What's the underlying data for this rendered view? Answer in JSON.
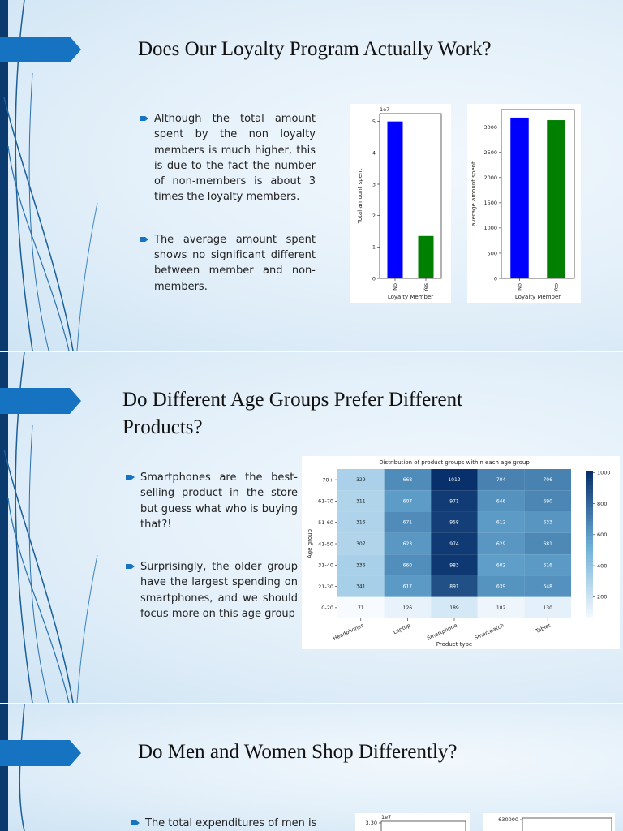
{
  "slides": [
    {
      "title": "Does Our Loyalty Program Actually Work?",
      "bullets": [
        "Although the total amount spent by the non loyalty members is much higher, this is due to the fact the number of non-members is about 3 times the loyalty members.",
        "The average amount spent shows no significant different between member and non-members."
      ]
    },
    {
      "title": "Do Different Age Groups Prefer Different Products?",
      "bullets": [
        "Smartphones are the best-selling product in the store but guess what who is buying that?!",
        "Surprisingly, the older group have the largest spending on smartphones, and we should focus more on this age group"
      ]
    },
    {
      "title": "Do Men and Women Shop Differently?",
      "bullets": [
        "The total expenditures of men is"
      ]
    }
  ],
  "colors": {
    "accent": "#1673c2",
    "navy": "#0b3b6e",
    "bar_no": "#0000ff",
    "bar_yes": "#008000"
  },
  "chart_data": [
    {
      "type": "bar",
      "categories": [
        "No",
        "Yes"
      ],
      "values": [
        5.0,
        1.35
      ],
      "offset_label": "1e7",
      "xlabel": "Loyalty Member",
      "ylabel": "Total amount spent",
      "yticks": [
        0,
        1,
        2,
        3,
        4,
        5
      ],
      "ylim": [
        0,
        5.25
      ]
    },
    {
      "type": "bar",
      "categories": [
        "No",
        "Yes"
      ],
      "values": [
        3190,
        3140
      ],
      "xlabel": "Loyalty Member",
      "ylabel": "average amount spent",
      "yticks": [
        0,
        500,
        1000,
        1500,
        2000,
        2500,
        3000
      ],
      "ylim": [
        0,
        3350
      ]
    },
    {
      "type": "heatmap",
      "title": "Distribution of product groups within each age group",
      "xlabel": "Product type",
      "ylabel": "Age group",
      "x": [
        "Headphones",
        "Laptop",
        "Smartphone",
        "Smartwatch",
        "Tablet"
      ],
      "y": [
        "70+",
        "61-70",
        "51-60",
        "41-50",
        "31-40",
        "21-30",
        "0-20"
      ],
      "values": [
        [
          329,
          668,
          1012,
          704,
          706
        ],
        [
          311,
          607,
          971,
          646,
          690
        ],
        [
          316,
          671,
          958,
          612,
          633
        ],
        [
          307,
          623,
          974,
          629,
          681
        ],
        [
          336,
          660,
          983,
          602,
          616
        ],
        [
          341,
          617,
          891,
          639,
          648
        ],
        [
          71,
          126,
          189,
          102,
          130
        ]
      ],
      "colorbar_ticks": [
        200,
        400,
        600,
        800,
        1000
      ],
      "range": [
        71,
        1012
      ]
    },
    {
      "type": "bar",
      "offset_label": "1e7",
      "yticks": [
        3.3
      ]
    },
    {
      "type": "bar",
      "yticks": [
        630000
      ]
    }
  ]
}
